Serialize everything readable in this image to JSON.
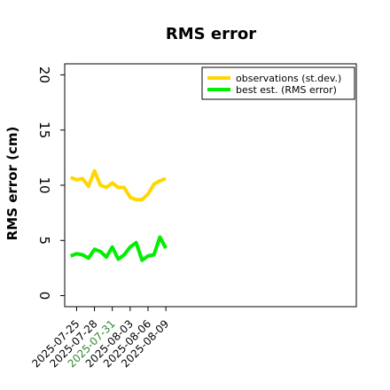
{
  "chart_data": {
    "type": "line",
    "title": "RMS error",
    "ylabel": "RMS error (cm)",
    "xlabel": "",
    "ylim": [
      -1,
      21
    ],
    "yticks": [
      0,
      5,
      10,
      15,
      20
    ],
    "xlim": [
      "2025-07-23",
      "2025-09-10"
    ],
    "xticks": [
      "2025-07-25",
      "2025-07-28",
      "2025-07-31",
      "2025-08-03",
      "2025-08-06",
      "2025-08-09"
    ],
    "highlighted_xtick": "2025-07-31",
    "highlight_color": "#2e8b2e",
    "grid": false,
    "legend_position": "top-right",
    "series": [
      {
        "name": "observations (st.dev.)",
        "color": "#ffd700",
        "x": [
          "2025-07-24",
          "2025-07-25",
          "2025-07-26",
          "2025-07-27",
          "2025-07-28",
          "2025-07-29",
          "2025-07-30",
          "2025-07-31",
          "2025-08-01",
          "2025-08-02",
          "2025-08-03",
          "2025-08-04",
          "2025-08-05",
          "2025-08-06",
          "2025-08-07",
          "2025-08-08",
          "2025-08-09"
        ],
        "values": [
          10.7,
          10.5,
          10.6,
          9.9,
          11.3,
          10.0,
          9.8,
          10.2,
          9.8,
          9.8,
          8.9,
          8.7,
          8.7,
          9.2,
          10.1,
          10.4,
          10.6
        ]
      },
      {
        "name": "best est. (RMS error)",
        "color": "#00ee00",
        "x": [
          "2025-07-24",
          "2025-07-25",
          "2025-07-26",
          "2025-07-27",
          "2025-07-28",
          "2025-07-29",
          "2025-07-30",
          "2025-07-31",
          "2025-08-01",
          "2025-08-02",
          "2025-08-03",
          "2025-08-04",
          "2025-08-05",
          "2025-08-06",
          "2025-08-07",
          "2025-08-08",
          "2025-08-09"
        ],
        "values": [
          3.6,
          3.8,
          3.7,
          3.4,
          4.2,
          4.0,
          3.5,
          4.4,
          3.3,
          3.7,
          4.4,
          4.8,
          3.2,
          3.6,
          3.7,
          5.3,
          4.3
        ]
      }
    ]
  }
}
